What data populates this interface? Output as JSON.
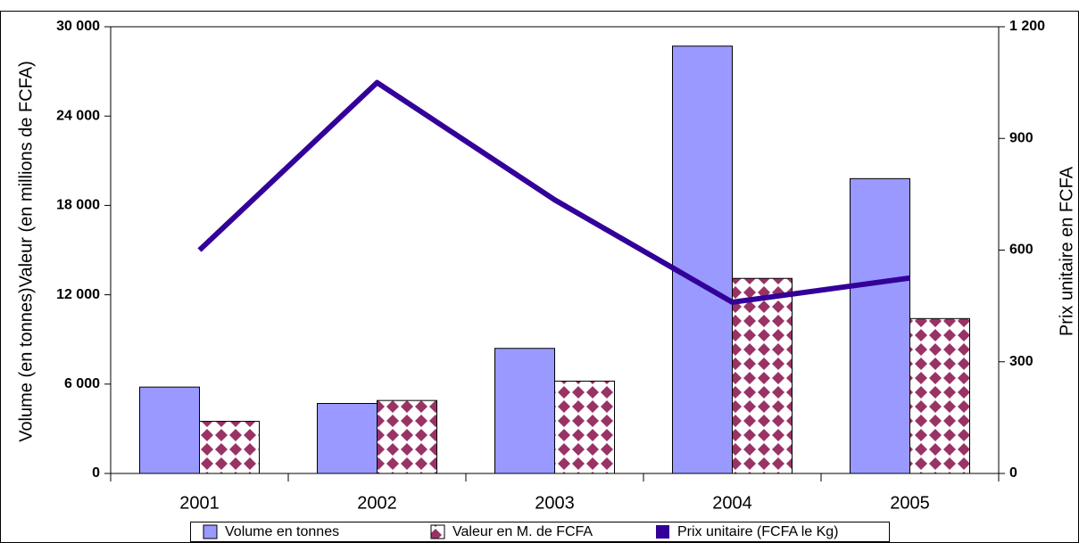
{
  "chart_data": {
    "type": "bar",
    "y_label": "Volume (en tonnes)Valeur (en millions de FCFA)",
    "y2_label": "Prix unitaire en FCFA",
    "categories": [
      "2001",
      "2002",
      "2003",
      "2004",
      "2005"
    ],
    "series": [
      {
        "name": "Volume en tonnes",
        "color": "#9999ff",
        "type": "bar",
        "values": [
          5800,
          4700,
          8400,
          28700,
          19800
        ]
      },
      {
        "name": "Valeur en M. de FCFA",
        "color": "#993366",
        "type": "bar",
        "values": [
          3500,
          4900,
          6200,
          13100,
          10400
        ]
      },
      {
        "name": "Prix unitaire (FCFA le Kg)",
        "color": "#330099",
        "type": "line",
        "axis": "y2",
        "values": [
          600,
          1050,
          735,
          460,
          525
        ]
      }
    ],
    "ylim": [
      0,
      30000
    ],
    "yticks": [
      0,
      {
        "value": 6000,
        "label": "6 000"
      },
      {
        "value": 12000,
        "label": "12 000"
      },
      {
        "value": 18000,
        "label": "18 000"
      },
      {
        "value": 24000,
        "label": "24 000"
      },
      {
        "value": 30000,
        "label": "30 000"
      }
    ],
    "y2lim": [
      0,
      1200
    ],
    "y2ticks": [
      0,
      300,
      600,
      900,
      {
        "value": 1200,
        "label": "1 200"
      }
    ],
    "legend": "bottom"
  }
}
